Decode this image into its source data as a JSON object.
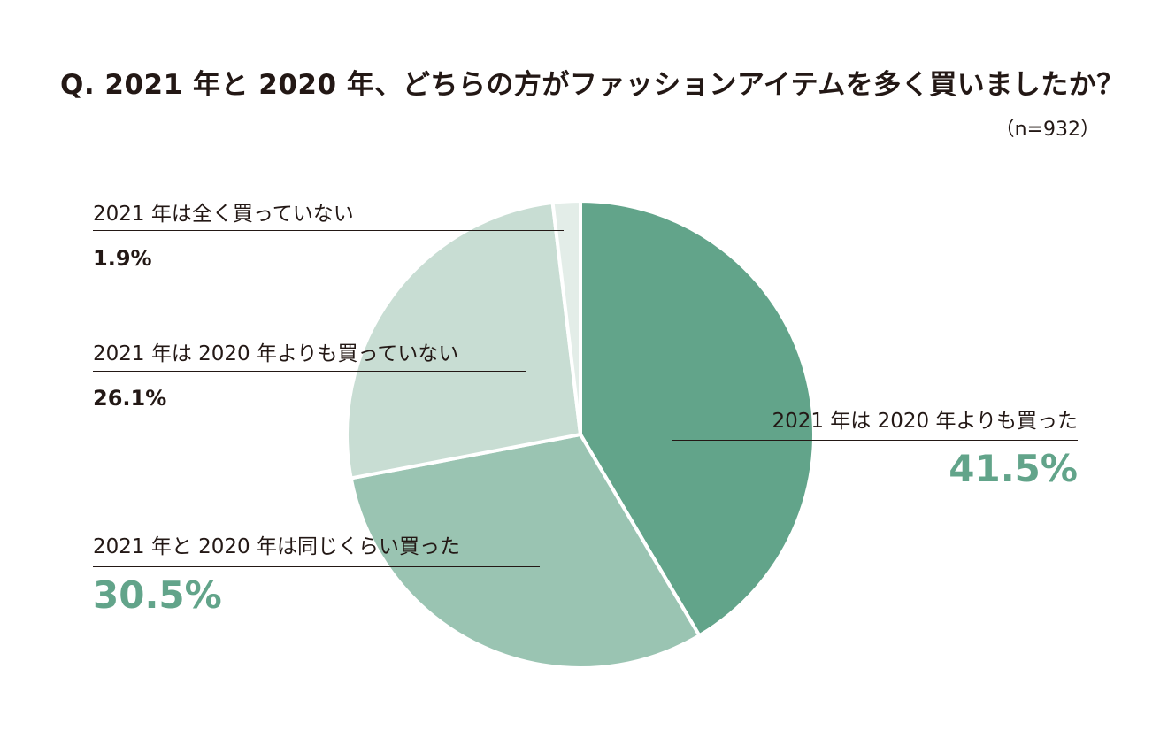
{
  "title": "Q. 2021 年と 2020 年、どちらの方がファッションアイテムを多く買いましたか？",
  "sample": "（n=932）",
  "colors": {
    "accent": "#62a48a",
    "slice_more": "#62a48a",
    "slice_same": "#9ac4b2",
    "slice_less": "#c8ddd3",
    "slice_none": "#e3ede8",
    "text": "#231815"
  },
  "chart_data": {
    "type": "pie",
    "title": "Q. 2021 年と 2020 年、どちらの方がファッションアイテムを多く買いましたか？",
    "subtitle": "（n=932）",
    "slices": [
      {
        "label": "2021 年は 2020 年よりも買った",
        "value": 41.5,
        "display": "41.5%",
        "color": "#62a48a"
      },
      {
        "label": "2021 年と 2020 年は同じくらい買った",
        "value": 30.5,
        "display": "30.5%",
        "color": "#9ac4b2"
      },
      {
        "label": "2021 年は 2020 年よりも買っていない",
        "value": 26.1,
        "display": "26.1%",
        "color": "#c8ddd3"
      },
      {
        "label": "2021 年は全く買っていない",
        "value": 1.9,
        "display": "1.9%",
        "color": "#e3ede8"
      }
    ],
    "start_angle": "12 o'clock",
    "direction": "clockwise"
  }
}
